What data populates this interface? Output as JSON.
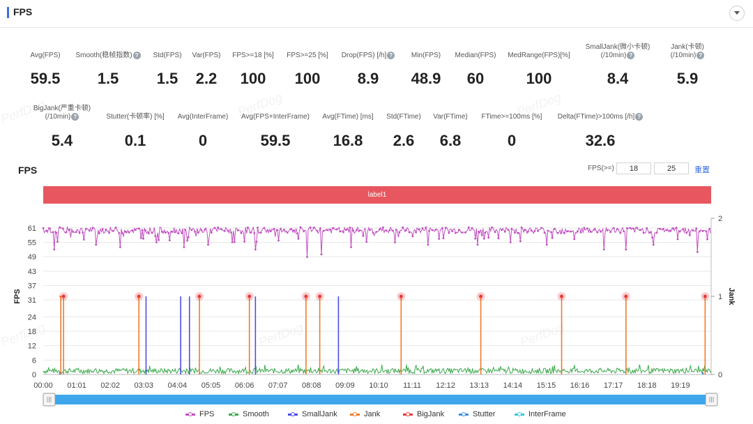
{
  "header": {
    "title": "FPS"
  },
  "stats_row1": [
    {
      "label": "Avg(FPS)",
      "value": "59.5",
      "help": false
    },
    {
      "label": "Smooth(稳帧指数)",
      "value": "1.5",
      "help": true
    },
    {
      "label": "Std(FPS)",
      "value": "1.5",
      "help": false
    },
    {
      "label": "Var(FPS)",
      "value": "2.2",
      "help": false
    },
    {
      "label": "FPS>=18 [%]",
      "value": "100",
      "help": false
    },
    {
      "label": "FPS>=25 [%]",
      "value": "100",
      "help": false
    },
    {
      "label": "Drop(FPS) [/h]",
      "value": "8.9",
      "help": true
    },
    {
      "label": "Min(FPS)",
      "value": "48.9",
      "help": false
    },
    {
      "label": "Median(FPS)",
      "value": "60",
      "help": false
    },
    {
      "label": "MedRange(FPS)[%]",
      "value": "100",
      "help": false
    },
    {
      "label": "SmallJank(微小卡顿)",
      "label2": "(/10min)",
      "value": "8.4",
      "help": true
    },
    {
      "label": "Jank(卡顿)",
      "label2": "(/10min)",
      "value": "5.9",
      "help": true
    }
  ],
  "stats_row2": [
    {
      "label": "BigJank(严重卡顿)",
      "label2": "(/10min)",
      "value": "5.4",
      "help": true
    },
    {
      "label": "Stutter(卡顿率) [%]",
      "value": "0.1",
      "help": false
    },
    {
      "label": "Avg(InterFrame)",
      "value": "0",
      "help": false
    },
    {
      "label": "Avg(FPS+InterFrame)",
      "value": "59.5",
      "help": false
    },
    {
      "label": "Avg(FTime) [ms]",
      "value": "16.8",
      "help": false
    },
    {
      "label": "Std(FTime)",
      "value": "2.6",
      "help": false
    },
    {
      "label": "Var(FTime)",
      "value": "6.8",
      "help": false
    },
    {
      "label": "FTime>=100ms [%]",
      "value": "0",
      "help": false
    },
    {
      "label": "Delta(FTime)>100ms [/h]",
      "value": "32.6",
      "help": true
    }
  ],
  "chart_header": {
    "title": "FPS",
    "threshold_label": "FPS(>=)",
    "threshold_1": "18",
    "threshold_2": "25",
    "reset_label": "重置"
  },
  "label_band": "label1",
  "watermark_text": "PerfDog",
  "chart_data": {
    "type": "line",
    "ylabel": "FPS",
    "ylabel_right": "Jank",
    "y_ticks": [
      0,
      6,
      12,
      18,
      24,
      31,
      37,
      43,
      49,
      55,
      61
    ],
    "ylim": [
      0,
      65
    ],
    "y2_ticks": [
      0,
      1,
      2
    ],
    "y2lim": [
      0,
      2
    ],
    "x_ticks": [
      "00:00",
      "01:01",
      "02:02",
      "03:03",
      "04:04",
      "05:05",
      "06:06",
      "07:07",
      "08:08",
      "09:09",
      "10:10",
      "11:11",
      "12:12",
      "13:13",
      "14:14",
      "15:15",
      "16:16",
      "17:17",
      "18:18",
      "19:19"
    ],
    "duration_seconds": 1215,
    "fps_baseline": 60,
    "fps_drops": [
      {
        "t": 20,
        "v": 52
      },
      {
        "t": 95,
        "v": 54
      },
      {
        "t": 140,
        "v": 53
      },
      {
        "t": 205,
        "v": 55
      },
      {
        "t": 255,
        "v": 53
      },
      {
        "t": 300,
        "v": 54
      },
      {
        "t": 385,
        "v": 52
      },
      {
        "t": 480,
        "v": 48.9
      },
      {
        "t": 505,
        "v": 50
      },
      {
        "t": 560,
        "v": 53
      },
      {
        "t": 640,
        "v": 55
      },
      {
        "t": 700,
        "v": 54
      },
      {
        "t": 790,
        "v": 54
      },
      {
        "t": 850,
        "v": 55
      },
      {
        "t": 915,
        "v": 54
      },
      {
        "t": 1020,
        "v": 52
      },
      {
        "t": 1060,
        "v": 52
      },
      {
        "t": 1110,
        "v": 54
      },
      {
        "t": 1190,
        "v": 51
      }
    ],
    "smooth_typical": 2,
    "big_jank_times": [
      37,
      174,
      284,
      375,
      478,
      503,
      651,
      796,
      943,
      1060,
      1204
    ],
    "jank_times": [
      32,
      37,
      174,
      284,
      375,
      478,
      503,
      651,
      796,
      943,
      1060,
      1204
    ],
    "small_jank_times": [
      187,
      250,
      266,
      386,
      537
    ],
    "series": [
      {
        "name": "FPS",
        "color": "#c04fc0"
      },
      {
        "name": "Smooth",
        "color": "#3aa84a"
      },
      {
        "name": "SmallJank",
        "color": "#4a4de8"
      },
      {
        "name": "Jank",
        "color": "#f07a28"
      },
      {
        "name": "BigJank",
        "color": "#e83a3a"
      },
      {
        "name": "Stutter",
        "color": "#3a8fe8"
      },
      {
        "name": "InterFrame",
        "color": "#36c6e0"
      }
    ]
  }
}
